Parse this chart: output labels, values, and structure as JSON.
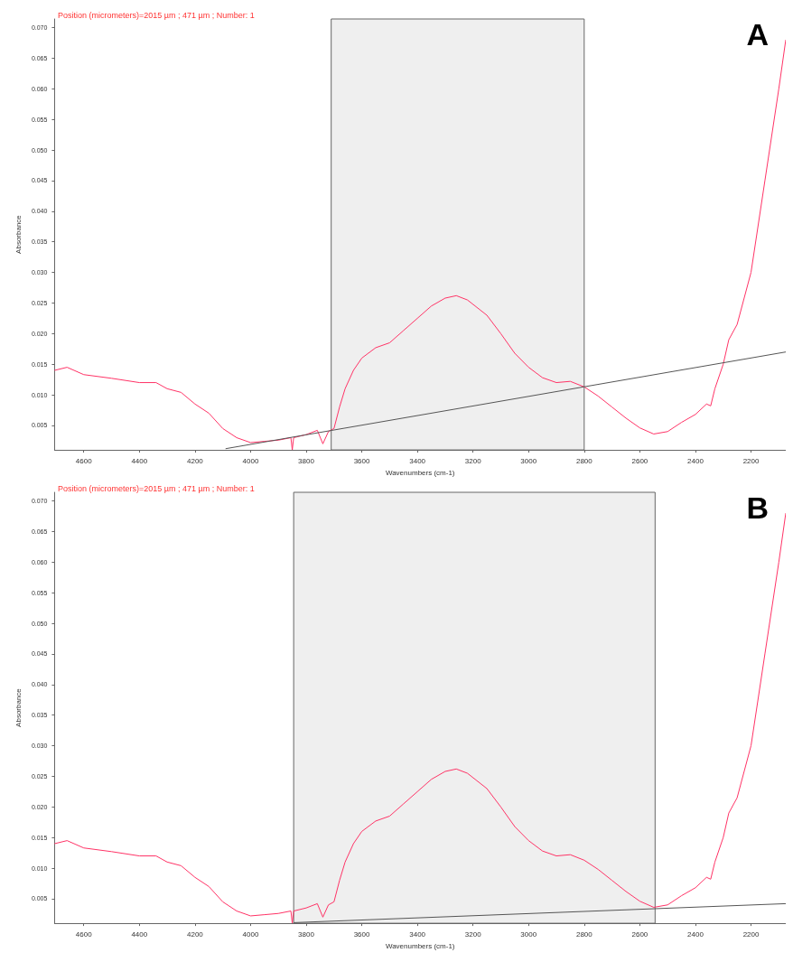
{
  "chart_data": [
    {
      "type": "line",
      "title": "A",
      "xlabel": "Wavenumbers (cm-1)",
      "ylabel": "Absorbance",
      "annotations": [
        "Position (micrometers)=2015 µm ; 471 µm ; Number: 1"
      ],
      "xlim": [
        4705,
        2075
      ],
      "ylim": [
        0.001,
        0.0714
      ],
      "xticks": [
        4600,
        4400,
        4200,
        4000,
        3800,
        3600,
        3400,
        3200,
        3000,
        2800,
        2600,
        2400,
        2200
      ],
      "yticks": [
        {
          "value": 0.005,
          "label": "0.005"
        },
        {
          "value": 0.01,
          "label": "0.010"
        },
        {
          "value": 0.015,
          "label": "0.015"
        },
        {
          "value": 0.02,
          "label": "0.020"
        },
        {
          "value": 0.025,
          "label": "0.025"
        },
        {
          "value": 0.03,
          "label": "0.030"
        },
        {
          "value": 0.035,
          "label": "0.035"
        },
        {
          "value": 0.04,
          "label": "0.040"
        },
        {
          "value": 0.045,
          "label": "0.045"
        },
        {
          "value": 0.05,
          "label": "0.050"
        },
        {
          "value": 0.055,
          "label": "0.055"
        },
        {
          "value": 0.06,
          "label": "0.060"
        },
        {
          "value": 0.065,
          "label": "0.065"
        },
        {
          "value": 0.07,
          "label": "0.070"
        }
      ],
      "grid": false,
      "marker": "none",
      "line_style": "solid",
      "bands": [
        {
          "axis": "x",
          "from": 3710,
          "to": 2800,
          "color": "#efefef"
        }
      ],
      "series": [
        {
          "color": "#ff3366",
          "x": [
            4705,
            4660,
            4600,
            4500,
            4400,
            4340,
            4300,
            4250,
            4200,
            4150,
            4100,
            4050,
            4000,
            3950,
            3900,
            3855,
            3850,
            3845,
            3800,
            3760,
            3740,
            3720,
            3700,
            3680,
            3660,
            3630,
            3600,
            3550,
            3500,
            3450,
            3400,
            3350,
            3300,
            3260,
            3220,
            3150,
            3100,
            3050,
            3000,
            2950,
            2900,
            2850,
            2800,
            2750,
            2700,
            2650,
            2600,
            2550,
            2500,
            2450,
            2400,
            2360,
            2345,
            2330,
            2300,
            2280,
            2250,
            2200,
            2150,
            2100,
            2075
          ],
          "values": [
            0.014,
            0.0145,
            0.0133,
            0.0127,
            0.012,
            0.012,
            0.011,
            0.0104,
            0.0085,
            0.007,
            0.0045,
            0.003,
            0.0022,
            0.0024,
            0.0026,
            0.003,
            0.001,
            0.003,
            0.0035,
            0.0042,
            0.002,
            0.004,
            0.0045,
            0.008,
            0.011,
            0.014,
            0.016,
            0.0177,
            0.0185,
            0.0205,
            0.0225,
            0.0245,
            0.0258,
            0.0262,
            0.0255,
            0.023,
            0.02,
            0.0168,
            0.0145,
            0.0128,
            0.012,
            0.0122,
            0.0113,
            0.0098,
            0.008,
            0.0062,
            0.0046,
            0.0036,
            0.004,
            0.0055,
            0.0068,
            0.0085,
            0.0082,
            0.011,
            0.015,
            0.019,
            0.0215,
            0.03,
            0.045,
            0.06,
            0.068
          ]
        },
        {
          "color": "#555555",
          "x": [
            4090,
            2075
          ],
          "values": [
            0.0012,
            0.017
          ]
        }
      ]
    },
    {
      "type": "line",
      "title": "B",
      "xlabel": "Wavenumbers (cm-1)",
      "ylabel": "Absorbance",
      "annotations": [
        "Position (micrometers)=2015 µm ; 471 µm ; Number: 1"
      ],
      "xlim": [
        4705,
        2075
      ],
      "ylim": [
        0.001,
        0.0714
      ],
      "xticks": [
        4600,
        4400,
        4200,
        4000,
        3800,
        3600,
        3400,
        3200,
        3000,
        2800,
        2600,
        2400,
        2200
      ],
      "yticks": [
        {
          "value": 0.005,
          "label": "0.005"
        },
        {
          "value": 0.01,
          "label": "0.010"
        },
        {
          "value": 0.015,
          "label": "0.015"
        },
        {
          "value": 0.02,
          "label": "0.020"
        },
        {
          "value": 0.025,
          "label": "0.025"
        },
        {
          "value": 0.03,
          "label": "0.030"
        },
        {
          "value": 0.035,
          "label": "0.035"
        },
        {
          "value": 0.04,
          "label": "0.040"
        },
        {
          "value": 0.045,
          "label": "0.045"
        },
        {
          "value": 0.05,
          "label": "0.050"
        },
        {
          "value": 0.055,
          "label": "0.055"
        },
        {
          "value": 0.06,
          "label": "0.060"
        },
        {
          "value": 0.065,
          "label": "0.065"
        },
        {
          "value": 0.07,
          "label": "0.070"
        }
      ],
      "grid": false,
      "marker": "none",
      "line_style": "solid",
      "bands": [
        {
          "axis": "x",
          "from": 3845,
          "to": 2545,
          "color": "#efefef"
        }
      ],
      "series": [
        {
          "color": "#ff3366",
          "x": [
            4705,
            4660,
            4600,
            4500,
            4400,
            4340,
            4300,
            4250,
            4200,
            4150,
            4100,
            4050,
            4000,
            3950,
            3900,
            3855,
            3850,
            3845,
            3800,
            3760,
            3740,
            3720,
            3700,
            3680,
            3660,
            3630,
            3600,
            3550,
            3500,
            3450,
            3400,
            3350,
            3300,
            3260,
            3220,
            3150,
            3100,
            3050,
            3000,
            2950,
            2900,
            2850,
            2800,
            2750,
            2700,
            2650,
            2600,
            2550,
            2500,
            2450,
            2400,
            2360,
            2345,
            2330,
            2300,
            2280,
            2250,
            2200,
            2150,
            2100,
            2075
          ],
          "values": [
            0.014,
            0.0145,
            0.0133,
            0.0127,
            0.012,
            0.012,
            0.011,
            0.0104,
            0.0085,
            0.007,
            0.0045,
            0.003,
            0.0022,
            0.0024,
            0.0026,
            0.003,
            0.001,
            0.003,
            0.0035,
            0.0042,
            0.002,
            0.004,
            0.0045,
            0.008,
            0.011,
            0.014,
            0.016,
            0.0177,
            0.0185,
            0.0205,
            0.0225,
            0.0245,
            0.0258,
            0.0262,
            0.0255,
            0.023,
            0.02,
            0.0168,
            0.0145,
            0.0128,
            0.012,
            0.0122,
            0.0113,
            0.0098,
            0.008,
            0.0062,
            0.0046,
            0.0036,
            0.004,
            0.0055,
            0.0068,
            0.0085,
            0.0082,
            0.011,
            0.015,
            0.019,
            0.0215,
            0.03,
            0.045,
            0.06,
            0.068
          ]
        },
        {
          "color": "#555555",
          "x": [
            3845,
            2075
          ],
          "values": [
            0.0011,
            0.0042
          ]
        }
      ]
    }
  ]
}
